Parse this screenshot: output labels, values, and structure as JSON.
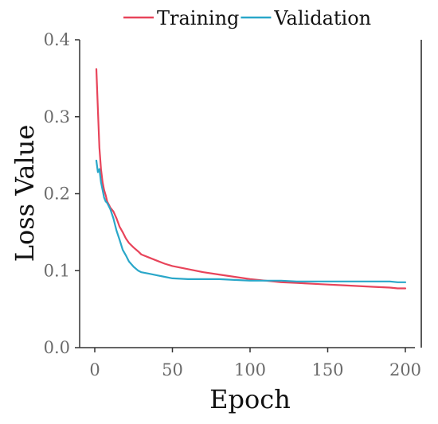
{
  "chart_data": {
    "type": "line",
    "title": "",
    "xlabel": "Epoch",
    "ylabel": "Loss Value",
    "xlim": [
      0,
      200
    ],
    "ylim": [
      0.0,
      0.4
    ],
    "xticks": [
      0,
      50,
      100,
      150,
      200
    ],
    "xtick_labels": [
      "0",
      "50",
      "100",
      "150",
      "200"
    ],
    "yticks": [
      0.0,
      0.1,
      0.2,
      0.3,
      0.4
    ],
    "ytick_labels": [
      "0.0",
      "0.1",
      "0.2",
      "0.3",
      "0.4"
    ],
    "grid": false,
    "legend_position": "top",
    "series": [
      {
        "name": "Training",
        "color": "#e8445a",
        "x": [
          1,
          2,
          3,
          4,
          5,
          6,
          7,
          8,
          10,
          12,
          14,
          16,
          18,
          20,
          22,
          25,
          28,
          30,
          35,
          40,
          45,
          50,
          60,
          70,
          80,
          90,
          100,
          110,
          120,
          130,
          140,
          150,
          160,
          170,
          180,
          190,
          195,
          200
        ],
        "values": [
          0.362,
          0.31,
          0.26,
          0.232,
          0.215,
          0.205,
          0.198,
          0.19,
          0.182,
          0.177,
          0.168,
          0.157,
          0.15,
          0.142,
          0.136,
          0.13,
          0.125,
          0.121,
          0.117,
          0.113,
          0.109,
          0.106,
          0.102,
          0.098,
          0.095,
          0.092,
          0.089,
          0.087,
          0.085,
          0.084,
          0.083,
          0.082,
          0.081,
          0.08,
          0.079,
          0.078,
          0.077,
          0.077
        ]
      },
      {
        "name": "Validation",
        "color": "#2aa7c9",
        "x": [
          1,
          2,
          3,
          4,
          5,
          6,
          7,
          8,
          10,
          12,
          14,
          16,
          18,
          20,
          22,
          25,
          28,
          30,
          35,
          40,
          45,
          50,
          60,
          70,
          80,
          90,
          100,
          110,
          120,
          130,
          140,
          150,
          160,
          170,
          180,
          190,
          195,
          200
        ],
        "values": [
          0.243,
          0.228,
          0.232,
          0.215,
          0.205,
          0.195,
          0.19,
          0.188,
          0.18,
          0.168,
          0.152,
          0.14,
          0.127,
          0.12,
          0.112,
          0.105,
          0.1,
          0.098,
          0.096,
          0.094,
          0.092,
          0.09,
          0.089,
          0.089,
          0.089,
          0.088,
          0.087,
          0.087,
          0.087,
          0.086,
          0.086,
          0.086,
          0.086,
          0.086,
          0.086,
          0.086,
          0.085,
          0.085
        ]
      }
    ]
  }
}
